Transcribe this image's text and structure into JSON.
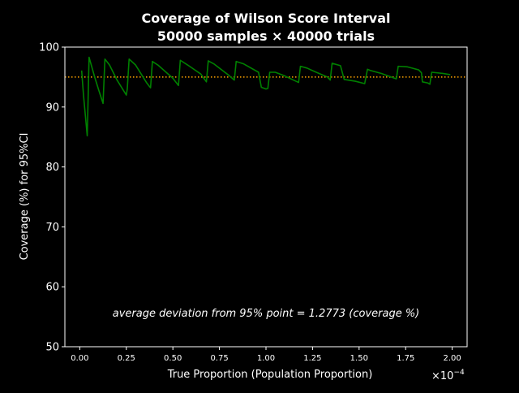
{
  "chart_data": {
    "type": "line",
    "title_line1": "Coverage of Wilson Score Interval",
    "title_line2": "50000 samples × 40000 trials",
    "xlabel": "True Proportion (Population Proportion)",
    "ylabel": "Coverage (%) for 95%CI",
    "x_scale_label": "×10",
    "x_scale_exponent": "−4",
    "annotation": "average deviation from 95% point = 1.2773 (coverage %)",
    "xlim": [
      -0.08,
      2.08
    ],
    "ylim": [
      50,
      100
    ],
    "x_ticks": [
      0.0,
      0.25,
      0.5,
      0.75,
      1.0,
      1.25,
      1.5,
      1.75,
      2.0
    ],
    "x_tick_labels": [
      "0.00",
      "0.25",
      "0.50",
      "0.75",
      "1.00",
      "1.25",
      "1.50",
      "1.75",
      "2.00"
    ],
    "y_ticks": [
      50,
      60,
      70,
      80,
      90,
      100
    ],
    "y_tick_labels": [
      "50",
      "60",
      "70",
      "80",
      "90",
      "100"
    ],
    "reference_line": {
      "y": 95,
      "color": "#ffa500",
      "style": "dotted"
    },
    "series": [
      {
        "color": "#008000",
        "x": [
          0.01,
          0.02,
          0.04,
          0.05,
          0.08,
          0.1,
          0.125,
          0.135,
          0.16,
          0.2,
          0.25,
          0.255,
          0.265,
          0.3,
          0.36,
          0.38,
          0.39,
          0.42,
          0.5,
          0.53,
          0.54,
          0.58,
          0.65,
          0.68,
          0.69,
          0.72,
          0.8,
          0.83,
          0.84,
          0.88,
          0.96,
          0.975,
          1.0,
          1.01,
          1.02,
          1.05,
          1.1,
          1.175,
          1.185,
          1.22,
          1.27,
          1.33,
          1.345,
          1.355,
          1.4,
          1.42,
          1.48,
          1.53,
          1.545,
          1.56,
          1.62,
          1.7,
          1.71,
          1.76,
          1.82,
          1.835,
          1.84,
          1.87,
          1.88,
          1.89,
          1.95,
          1.99
        ],
        "y": [
          96.1,
          92.0,
          85.2,
          98.3,
          95.0,
          93.0,
          90.6,
          98.0,
          97.0,
          94.5,
          92.0,
          93.0,
          98.0,
          97.0,
          94.0,
          93.2,
          97.6,
          97.0,
          94.8,
          93.6,
          97.8,
          97.0,
          95.5,
          94.2,
          97.7,
          97.2,
          95.3,
          94.5,
          97.6,
          97.2,
          95.8,
          93.3,
          93.0,
          93.1,
          95.8,
          95.8,
          95.2,
          94.1,
          96.8,
          96.5,
          95.8,
          95.0,
          94.5,
          97.3,
          96.9,
          94.6,
          94.3,
          93.9,
          96.3,
          96.1,
          95.6,
          94.7,
          96.8,
          96.7,
          96.2,
          95.7,
          94.2,
          94.0,
          93.8,
          95.8,
          95.6,
          95.4
        ]
      }
    ],
    "grid": false,
    "legend": false,
    "background": "#000000",
    "foreground": "#ffffff"
  }
}
